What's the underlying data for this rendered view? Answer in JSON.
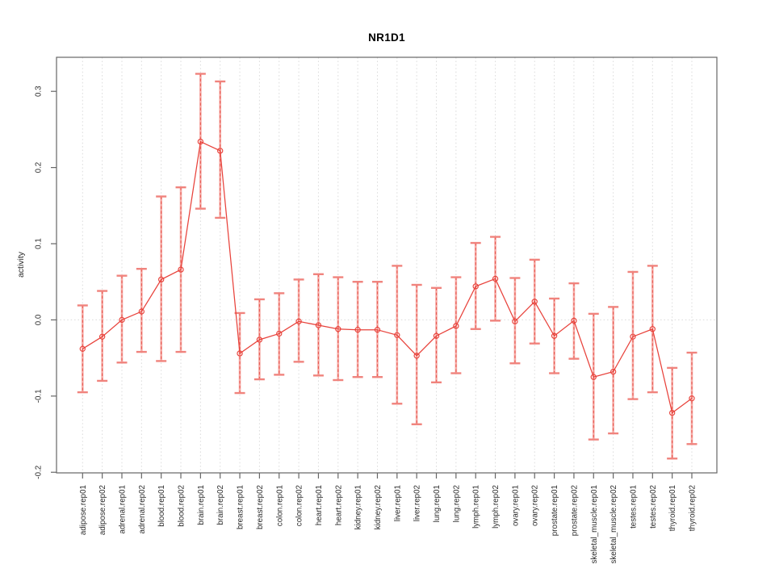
{
  "page": {
    "background": "#ffffff"
  },
  "chart_data": {
    "type": "line",
    "title": "NR1D1",
    "xlabel": "",
    "ylabel": "activity",
    "legend": "none",
    "grid": {
      "vertical_per_category": true,
      "horizontal_at_zero": true,
      "style": "dotted",
      "color": "#dcdcdc"
    },
    "ylim": [
      -0.2,
      0.345
    ],
    "yticks": [
      0.3,
      0.2,
      0.1,
      0.0,
      -0.1,
      -0.2
    ],
    "ytick_labels": [
      "0.3",
      "0.2",
      "0.1",
      "0.0",
      "-0.1",
      "-0.2"
    ],
    "categories": [
      "adipose.rep01",
      "adipose.rep02",
      "adrenal.rep01",
      "adrenal.rep02",
      "blood.rep01",
      "blood.rep02",
      "brain.rep01",
      "brain.rep02",
      "breast.rep01",
      "breast.rep02",
      "colon.rep01",
      "colon.rep02",
      "heart.rep01",
      "heart.rep02",
      "kidney.rep01",
      "kidney.rep02",
      "liver.rep01",
      "liver.rep02",
      "lung.rep01",
      "lung.rep02",
      "lymph.rep01",
      "lymph.rep02",
      "ovary.rep01",
      "ovary.rep02",
      "prostate.rep01",
      "prostate.rep02",
      "skeletal_muscle.rep01",
      "skeletal_muscle.rep02",
      "testes.rep01",
      "testes.rep02",
      "thyroid.rep01",
      "thyroid.rep02"
    ],
    "series": [
      {
        "name": "activity",
        "means": [
          -0.038,
          -0.022,
          0.0,
          0.011,
          0.053,
          0.066,
          0.234,
          0.222,
          -0.044,
          -0.026,
          -0.018,
          -0.002,
          -0.007,
          -0.012,
          -0.013,
          -0.013,
          -0.02,
          -0.047,
          -0.021,
          -0.008,
          0.044,
          0.054,
          -0.002,
          0.024,
          -0.021,
          -0.001,
          -0.075,
          -0.068,
          -0.022,
          -0.012,
          -0.122,
          -0.103
        ],
        "upper": [
          0.019,
          0.038,
          0.058,
          0.067,
          0.162,
          0.174,
          0.323,
          0.313,
          0.009,
          0.027,
          0.035,
          0.053,
          0.06,
          0.056,
          0.05,
          0.05,
          0.071,
          0.046,
          0.042,
          0.056,
          0.101,
          0.109,
          0.055,
          0.079,
          0.028,
          0.048,
          0.008,
          0.017,
          0.063,
          0.071,
          -0.063,
          -0.043
        ],
        "lower": [
          -0.095,
          -0.08,
          -0.056,
          -0.042,
          -0.054,
          -0.042,
          0.146,
          0.134,
          -0.096,
          -0.078,
          -0.072,
          -0.055,
          -0.073,
          -0.079,
          -0.075,
          -0.075,
          -0.11,
          -0.137,
          -0.082,
          -0.07,
          -0.012,
          -0.001,
          -0.057,
          -0.031,
          -0.07,
          -0.051,
          -0.157,
          -0.149,
          -0.104,
          -0.095,
          -0.182,
          -0.163
        ]
      }
    ],
    "colors": {
      "point_line": "#e8423b",
      "errorbar_band": "#f6aba6",
      "errorbar_dash": "#e85d55",
      "errorbar_cap": "#f0837d",
      "axis": "#666666",
      "tick_text": "#2b2b2b",
      "title_text": "#000000",
      "grid": "#dcdcdc"
    }
  }
}
